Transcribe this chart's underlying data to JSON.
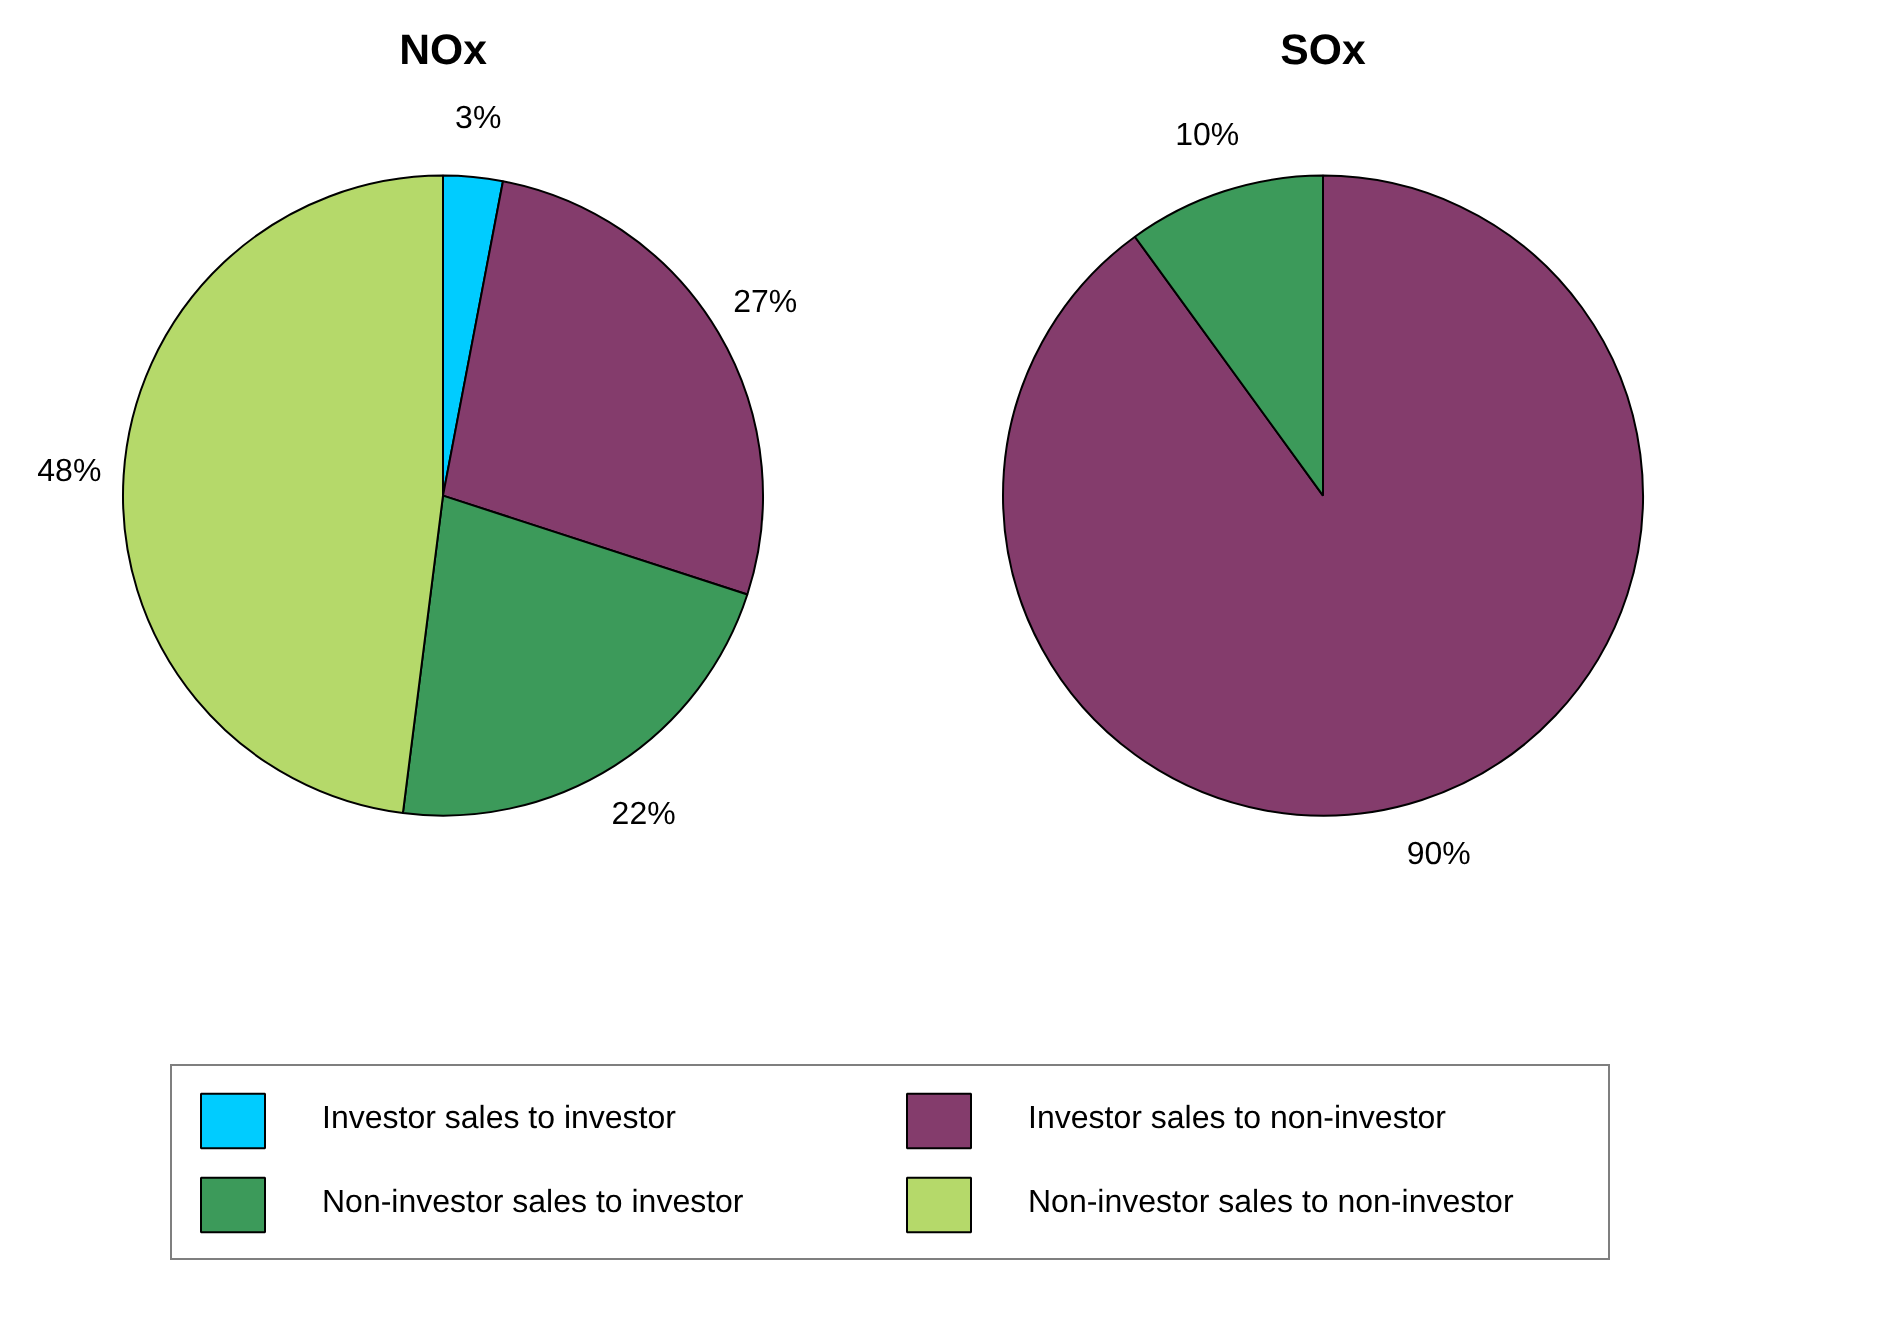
{
  "chart_data": [
    {
      "type": "pie",
      "title": "NOx",
      "categories": [
        "Investor sales to investor",
        "Investor sales to non-investor",
        "Non-investor sales to investor",
        "Non-investor sales to non-investor"
      ],
      "values": [
        3,
        27,
        22,
        48
      ],
      "value_labels": [
        "3%",
        "27%",
        "22%",
        "48%"
      ],
      "colors": [
        "#00ccff",
        "#843c6c",
        "#3c9a5a",
        "#b5d96a"
      ],
      "legend": "bottom"
    },
    {
      "type": "pie",
      "title": "SOx",
      "categories": [
        null,
        null
      ],
      "values": [
        90,
        10
      ],
      "value_labels": [
        "90%",
        "10%"
      ],
      "colors": [
        "#843c6c",
        "#3c9a5a"
      ]
    }
  ]
}
